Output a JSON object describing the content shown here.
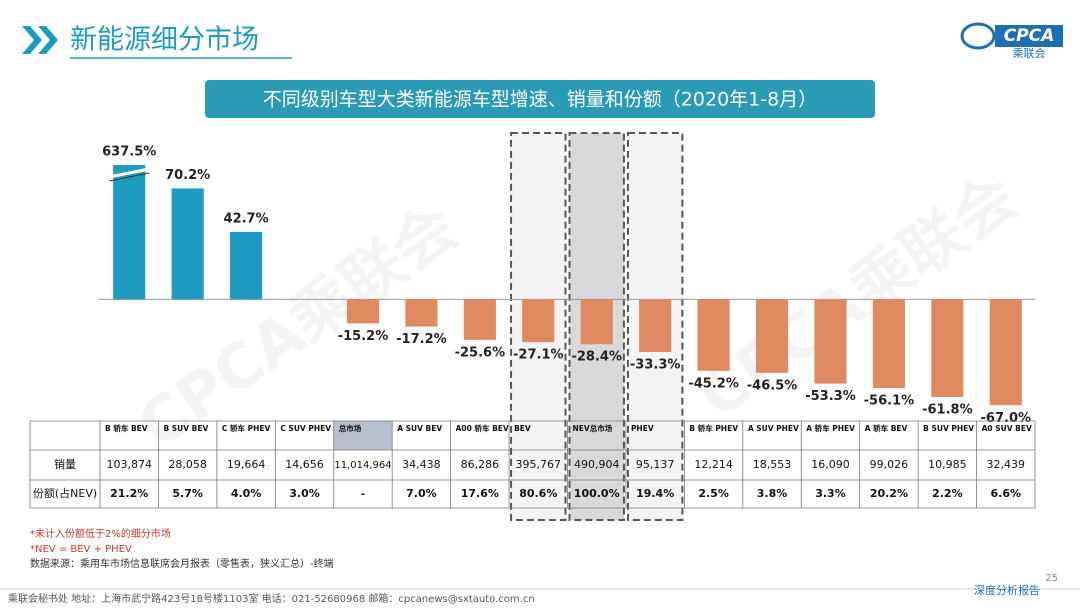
{
  "header": {
    "title": "新能源细分市场",
    "logo": "CPCA",
    "logo_sub": "乘联会"
  },
  "watermark": "CPCA乘联会",
  "chart_data": {
    "type": "bar",
    "title": "不同级别车型大类新能源车型增速、销量和份额（2020年1-8月）",
    "categories": [
      "B 轿车 BEV",
      "B SUV BEV",
      "C 轿车 PHEV",
      "C SUV PHEV",
      "总市场",
      "A SUV BEV",
      "A00 轿车 BEV",
      "BEV",
      "NEV总市场",
      "PHEV",
      "B 轿车 PHEV",
      "A SUV PHEV",
      "A 轿车 PHEV",
      "A 轿车 BEV",
      "B SUV PHEV",
      "A0 SUV BEV"
    ],
    "values": [
      637.5,
      70.2,
      42.7,
      null,
      -15.2,
      -17.2,
      -25.6,
      -27.1,
      -28.4,
      -33.3,
      -45.2,
      -46.5,
      -53.3,
      -56.1,
      -61.8,
      -67.0
    ],
    "value_labels": [
      "637.5%",
      "70.2%",
      "42.7%",
      null,
      "-15.2%",
      "-17.2%",
      "-25.6%",
      "-27.1%",
      "-28.4%",
      "-33.3%",
      "-45.2%",
      "-46.5%",
      "-53.3%",
      "-56.1%",
      "-61.8%",
      "-67.0%"
    ],
    "positive_color": "#1f9bc1",
    "negative_color": "#e08a62",
    "ylim": [
      -70,
      85
    ]
  },
  "table": {
    "rows": [
      {
        "label": "销量",
        "cells": [
          "103,874",
          "28,058",
          "19,664",
          "14,656",
          "11,014,964",
          "34,438",
          "86,286",
          "395,767",
          "490,904",
          "95,137",
          "12,214",
          "18,553",
          "16,090",
          "99,026",
          "10,985",
          "32,439"
        ]
      },
      {
        "label": "份额(占NEV)",
        "cells": [
          "21.2%",
          "5.7%",
          "4.0%",
          "3.0%",
          "-",
          "7.0%",
          "17.6%",
          "80.6%",
          "100.0%",
          "19.4%",
          "2.5%",
          "3.8%",
          "3.3%",
          "20.2%",
          "2.2%",
          "6.6%"
        ]
      }
    ]
  },
  "notes": [
    "*未计入份额低于2%的细分市场",
    "*NEV = BEV + PHEV",
    "数据来源：乘用车市场信息联席会月报表（零售表，狭义汇总）-终端"
  ],
  "footer": {
    "address": "乘联会秘书处   地址：上海市武宁路423号18号楼1103室   电话：021-52680968   邮箱：cpcanews@sxtauto.com.cn",
    "report": "深度分析报告",
    "page": "25"
  }
}
